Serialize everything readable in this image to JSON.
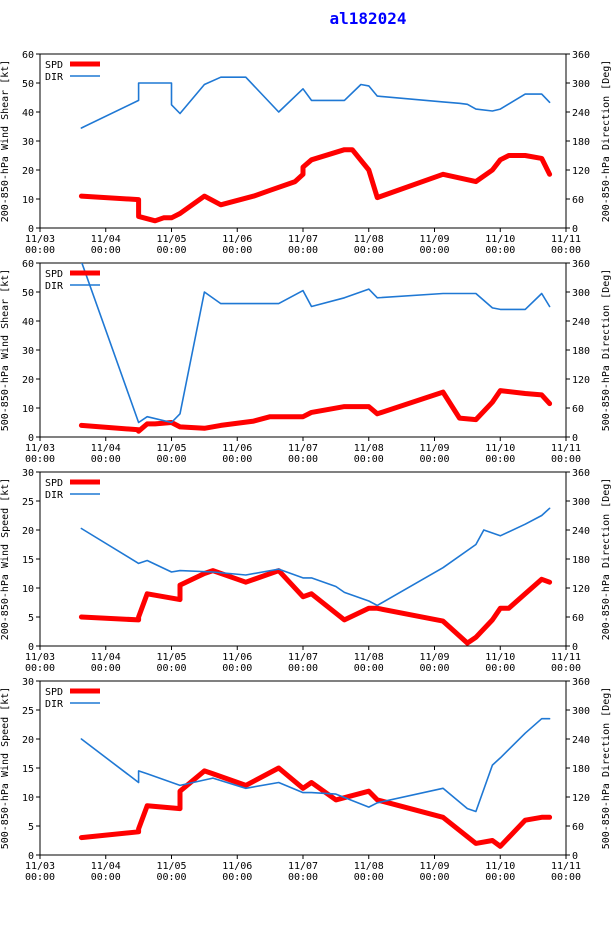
{
  "title": "al182024",
  "colors": {
    "spd": "#ff0000",
    "dir": "#1f78d4",
    "title": "#0000ff"
  },
  "chart_data": [
    {
      "type": "line",
      "ylabel_left": "200-850-hPa Wind Shear [kt]",
      "ylabel_right": "200-850-hPa Direction [Deg]",
      "ylim": [
        0,
        60
      ],
      "yticks": [
        "0",
        "10",
        "20",
        "30",
        "40",
        "50",
        "60"
      ],
      "ylim_right": [
        0,
        360
      ],
      "yticks_right": [
        "0",
        "60",
        "120",
        "180",
        "240",
        "300",
        "360"
      ],
      "xlim": [
        0,
        8
      ],
      "xtick_dates": [
        "11/03",
        "11/04",
        "11/05",
        "11/06",
        "11/07",
        "11/08",
        "11/09",
        "11/10",
        "11/11"
      ],
      "xtick_times": [
        "00:00",
        "00:00",
        "00:00",
        "00:00",
        "00:00",
        "00:00",
        "00:00",
        "00:00",
        "00:00"
      ],
      "legend": [
        "SPD",
        "DIR"
      ],
      "series": [
        {
          "name": "SPD",
          "axis": "left",
          "x": [
            0.63,
            1.5,
            1.5,
            1.75,
            1.88,
            2.0,
            2.13,
            2.5,
            2.75,
            3.25,
            3.5,
            3.88,
            4.0,
            4.0,
            4.13,
            4.63,
            4.75,
            5.0,
            5.13,
            6.13,
            6.63,
            6.88,
            7.0,
            7.13,
            7.38,
            7.63,
            7.75
          ],
          "y": [
            11,
            9.8,
            4,
            2.5,
            3.5,
            3.5,
            5,
            11,
            8,
            11,
            13,
            16,
            18.5,
            21,
            23.5,
            27,
            27,
            20,
            10.5,
            18.5,
            16,
            20,
            23.5,
            25,
            25,
            24,
            18.5
          ]
        },
        {
          "name": "DIR",
          "axis": "right",
          "x": [
            0.63,
            1.5,
            1.5,
            1.88,
            2.0,
            2.0,
            2.13,
            2.5,
            2.75,
            3.13,
            3.63,
            4.0,
            4.13,
            4.63,
            4.88,
            5.0,
            5.13,
            6.13,
            6.38,
            6.5,
            6.63,
            6.88,
            7.0,
            7.38,
            7.63,
            7.75
          ],
          "y": [
            207,
            264,
            300,
            300,
            300,
            255,
            237,
            297,
            312,
            312,
            240,
            288,
            264,
            264,
            297,
            294,
            273,
            261,
            258,
            256,
            246,
            242,
            246,
            277,
            277,
            260
          ]
        }
      ]
    },
    {
      "type": "line",
      "ylabel_left": "500-850-hPa Wind Shear [kt]",
      "ylabel_right": "500-850-hPa Direction [Deg]",
      "ylim": [
        0,
        60
      ],
      "yticks": [
        "0",
        "10",
        "20",
        "30",
        "40",
        "50",
        "60"
      ],
      "ylim_right": [
        0,
        360
      ],
      "yticks_right": [
        "0",
        "60",
        "120",
        "180",
        "240",
        "300",
        "360"
      ],
      "xlim": [
        0,
        8
      ],
      "xtick_dates": [
        "11/03",
        "11/04",
        "11/05",
        "11/06",
        "11/07",
        "11/08",
        "11/09",
        "11/10",
        "11/11"
      ],
      "xtick_times": [
        "00:00",
        "00:00",
        "00:00",
        "00:00",
        "00:00",
        "00:00",
        "00:00",
        "00:00",
        "00:00"
      ],
      "legend": [
        "SPD",
        "DIR"
      ],
      "series": [
        {
          "name": "SPD",
          "axis": "left",
          "x": [
            0.63,
            1.5,
            1.5,
            1.63,
            1.75,
            2.0,
            2.13,
            2.5,
            2.75,
            3.25,
            3.5,
            3.63,
            4.0,
            4.13,
            4.63,
            5.0,
            5.13,
            6.13,
            6.38,
            6.63,
            6.88,
            7.0,
            7.38,
            7.63,
            7.75
          ],
          "y": [
            4,
            2.5,
            2,
            4.5,
            4.5,
            5,
            3.5,
            3,
            4,
            5.5,
            7,
            7,
            7,
            8.5,
            10.5,
            10.5,
            8,
            15.5,
            6.5,
            6,
            12,
            16,
            15,
            14.5,
            11.5
          ]
        },
        {
          "name": "DIR",
          "axis": "right",
          "x": [
            0.63,
            1.5,
            1.63,
            2.0,
            2.13,
            2.5,
            2.75,
            3.13,
            3.63,
            4.0,
            4.13,
            4.63,
            5.0,
            5.13,
            6.13,
            6.5,
            6.63,
            6.88,
            7.0,
            7.38,
            7.63,
            7.75
          ],
          "y": [
            363,
            30,
            42,
            30,
            48,
            300,
            276,
            276,
            276,
            303,
            270,
            288,
            306,
            288,
            297,
            297,
            297,
            267,
            264,
            264,
            297,
            270
          ]
        }
      ]
    },
    {
      "type": "line",
      "ylabel_left": "200-850-hPa Wind Speed [kt]",
      "ylabel_right": "200-850-hPa Direction [Deg]",
      "ylim": [
        0,
        30
      ],
      "yticks": [
        "0",
        "5",
        "10",
        "15",
        "20",
        "25",
        "30"
      ],
      "ylim_right": [
        0,
        360
      ],
      "yticks_right": [
        "0",
        "60",
        "120",
        "180",
        "240",
        "300",
        "360"
      ],
      "xlim": [
        0,
        8
      ],
      "xtick_dates": [
        "11/03",
        "11/04",
        "11/05",
        "11/06",
        "11/07",
        "11/08",
        "11/09",
        "11/10",
        "11/11"
      ],
      "xtick_times": [
        "00:00",
        "00:00",
        "00:00",
        "00:00",
        "00:00",
        "00:00",
        "00:00",
        "00:00",
        "00:00"
      ],
      "legend": [
        "SPD",
        "DIR"
      ],
      "series": [
        {
          "name": "SPD",
          "axis": "left",
          "x": [
            0.63,
            1.5,
            1.5,
            1.63,
            2.13,
            2.13,
            2.5,
            2.63,
            3.13,
            3.63,
            4.0,
            4.13,
            4.63,
            5.0,
            5.13,
            6.13,
            6.5,
            6.63,
            6.88,
            7.0,
            7.13,
            7.38,
            7.63,
            7.75
          ],
          "y": [
            5,
            4.5,
            5,
            9,
            8,
            10.5,
            12.5,
            13,
            11,
            13,
            8.5,
            9,
            4.5,
            6.5,
            6.5,
            4.3,
            0.5,
            1.5,
            4.5,
            6.5,
            6.5,
            9,
            11.5,
            11
          ]
        },
        {
          "name": "DIR",
          "axis": "right",
          "x": [
            0.63,
            1.5,
            1.63,
            2.0,
            2.13,
            2.63,
            3.13,
            3.63,
            4.0,
            4.13,
            4.5,
            4.63,
            5.0,
            5.13,
            6.13,
            6.63,
            6.75,
            7.0,
            7.38,
            7.63,
            7.75
          ],
          "y": [
            243,
            171,
            177,
            153,
            156,
            153,
            147,
            159,
            141,
            141,
            123,
            111,
            93,
            84,
            162,
            210,
            240,
            228,
            252,
            270,
            285
          ]
        }
      ]
    },
    {
      "type": "line",
      "ylabel_left": "500-850-hPa Wind Speed [kt]",
      "ylabel_right": "500-850-hPa Direction [Deg]",
      "ylim": [
        0,
        30
      ],
      "yticks": [
        "0",
        "5",
        "10",
        "15",
        "20",
        "25",
        "30"
      ],
      "ylim_right": [
        0,
        360
      ],
      "yticks_right": [
        "0",
        "60",
        "120",
        "180",
        "240",
        "300",
        "360"
      ],
      "xlim": [
        0,
        8
      ],
      "xtick_dates": [
        "11/03",
        "11/04",
        "11/05",
        "11/06",
        "11/07",
        "11/08",
        "11/09",
        "11/10",
        "11/11"
      ],
      "xtick_times": [
        "00:00",
        "00:00",
        "00:00",
        "00:00",
        "00:00",
        "00:00",
        "00:00",
        "00:00",
        "00:00"
      ],
      "legend": [
        "SPD",
        "DIR"
      ],
      "series": [
        {
          "name": "SPD",
          "axis": "left",
          "x": [
            0.63,
            1.5,
            1.5,
            1.63,
            2.13,
            2.13,
            2.5,
            2.63,
            3.13,
            3.63,
            4.0,
            4.13,
            4.5,
            5.0,
            5.13,
            6.13,
            6.63,
            6.88,
            7.0,
            7.38,
            7.63,
            7.75
          ],
          "y": [
            3,
            4,
            4.5,
            8.5,
            8,
            11,
            14.5,
            14,
            12,
            15,
            11.5,
            12.5,
            9.5,
            11,
            9.5,
            6.5,
            2,
            2.5,
            1.5,
            6,
            6.5,
            6.5
          ]
        },
        {
          "name": "DIR",
          "axis": "right",
          "x": [
            0.63,
            1.5,
            1.5,
            1.63,
            2.13,
            2.63,
            3.13,
            3.63,
            4.0,
            4.13,
            4.5,
            5.0,
            5.13,
            6.13,
            6.5,
            6.63,
            6.88,
            7.0,
            7.38,
            7.63,
            7.75
          ],
          "y": [
            240,
            150,
            174,
            168,
            144,
            159,
            138,
            150,
            129,
            129,
            126,
            99,
            108,
            138,
            96,
            90,
            186,
            201,
            252,
            282,
            282
          ]
        }
      ]
    }
  ]
}
